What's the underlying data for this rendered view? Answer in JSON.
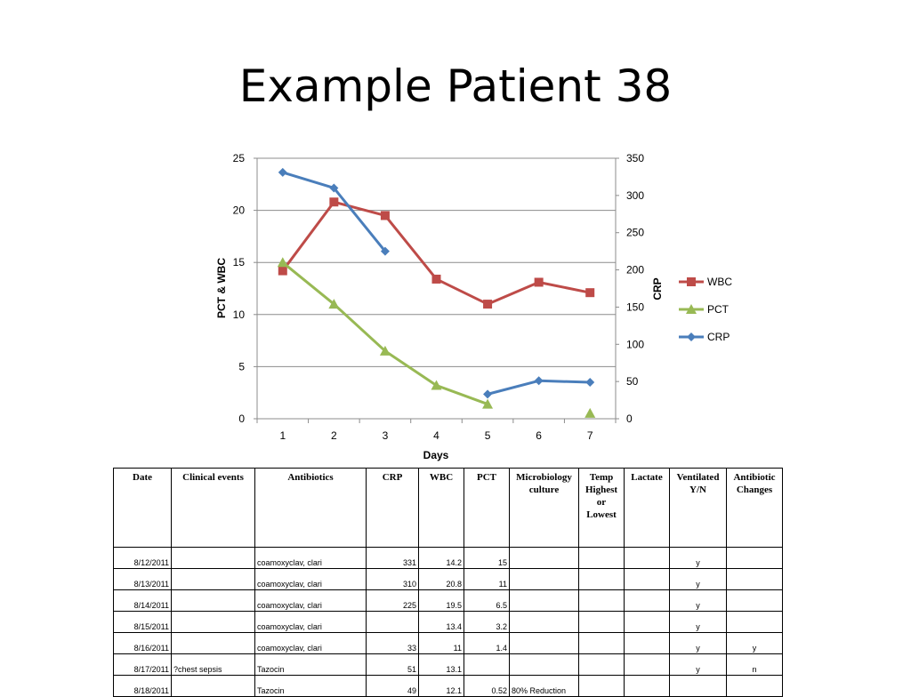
{
  "slide": {
    "title": "Example Patient 38"
  },
  "chart_data": {
    "type": "line",
    "x": [
      1,
      2,
      3,
      4,
      5,
      6,
      7
    ],
    "xlabel": "Days",
    "ylabel_left": "PCT & WBC",
    "ylabel_right": "CRP",
    "ylim_left": [
      0,
      25
    ],
    "ylim_right": [
      0,
      350
    ],
    "yticks_left": [
      0,
      5,
      10,
      15,
      20,
      25
    ],
    "yticks_right": [
      0,
      50,
      100,
      150,
      200,
      250,
      300,
      350
    ],
    "grid": true,
    "legend": "right",
    "series": [
      {
        "name": "WBC",
        "axis": "left",
        "color": "#be4b48",
        "marker": "square",
        "values": [
          14.2,
          20.8,
          19.5,
          13.4,
          11,
          13.1,
          12.1
        ]
      },
      {
        "name": "PCT",
        "axis": "left",
        "color": "#98b954",
        "marker": "triangle",
        "values": [
          15,
          11,
          6.5,
          3.2,
          1.4,
          null,
          0.52
        ]
      },
      {
        "name": "CRP",
        "axis": "right",
        "color": "#4a7ebb",
        "marker": "diamond",
        "values": [
          331,
          310,
          225,
          null,
          33,
          51,
          49
        ]
      }
    ]
  },
  "table": {
    "headers": [
      "Date",
      "Clinical events",
      "Antibiotics",
      "CRP",
      "WBC",
      "PCT",
      "Microbiology culture",
      "Temp Highest or Lowest",
      "Lactate",
      "Ventilated Y/N",
      "Antibiotic Changes"
    ],
    "rows": [
      [
        "8/12/2011",
        "",
        "coamoxyclav, clari",
        "331",
        "14.2",
        "15",
        "",
        "",
        "",
        "y",
        ""
      ],
      [
        "8/13/2011",
        "",
        "coamoxyclav, clari",
        "310",
        "20.8",
        "11",
        "",
        "",
        "",
        "y",
        ""
      ],
      [
        "8/14/2011",
        "",
        "coamoxyclav, clari",
        "225",
        "19.5",
        "6.5",
        "",
        "",
        "",
        "y",
        ""
      ],
      [
        "8/15/2011",
        "",
        "coamoxyclav, clari",
        "",
        "13.4",
        "3.2",
        "",
        "",
        "",
        "y",
        ""
      ],
      [
        "8/16/2011",
        "",
        "coamoxyclav, clari",
        "33",
        "11",
        "1.4",
        "",
        "",
        "",
        "y",
        "y"
      ],
      [
        "8/17/2011",
        "?chest sepsis",
        "Tazocin",
        "51",
        "13.1",
        "",
        "",
        "",
        "",
        "y",
        "n"
      ],
      [
        "8/18/2011",
        "",
        "Tazocin",
        "49",
        "12.1",
        "0.52",
        "80% Reduction",
        "",
        "",
        "",
        ""
      ]
    ]
  }
}
